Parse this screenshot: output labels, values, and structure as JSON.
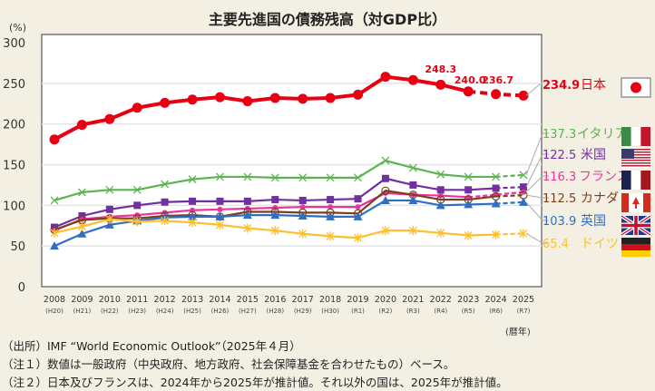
{
  "chart_data": {
    "type": "line",
    "title": "主要先進国の債務残高（対GDP比）",
    "ylabel": "(%)",
    "xlabel": "(暦年)",
    "ylim": [
      0,
      300
    ],
    "yticks": [
      0,
      50,
      100,
      150,
      200,
      250,
      300
    ],
    "grid": true,
    "legend": "right",
    "x": [
      "2008",
      "2009",
      "2010",
      "2011",
      "2012",
      "2013",
      "2014",
      "2015",
      "2016",
      "2017",
      "2018",
      "2019",
      "2020",
      "2021",
      "2022",
      "2023",
      "2024",
      "2025"
    ],
    "x_sub": [
      "(H20)",
      "(H21)",
      "(H22)",
      "(H23)",
      "(H24)",
      "(H25)",
      "(H26)",
      "(H27)",
      "(H28)",
      "(H29)",
      "(H30)",
      "(R1)",
      "(R2)",
      "(R3)",
      "(R4)",
      "(R5)",
      "(R6)",
      "(R7)"
    ],
    "series": [
      {
        "name": "日本",
        "color": "#e60012",
        "marker": "circle",
        "estimate_from": "2024",
        "label_value": "234.9",
        "flag": "japan",
        "values": [
          181,
          199,
          206,
          220,
          226,
          230,
          233,
          228,
          232,
          231,
          232,
          236,
          258,
          254,
          248.3,
          240.0,
          236.7,
          234.9
        ],
        "data_labels": {
          "2022": "248.3",
          "2023": "240.0",
          "2024": "236.7"
        }
      },
      {
        "name": "イタリア",
        "color": "#5cb450",
        "marker": "x",
        "estimate_from": "2025",
        "label_value": "137.3",
        "flag": "italy",
        "values": [
          106,
          116,
          119,
          119,
          126,
          132,
          135,
          135,
          134,
          134,
          134,
          134,
          155,
          146,
          138,
          135,
          135,
          137.3
        ]
      },
      {
        "name": "米国",
        "color": "#7030a0",
        "marker": "square",
        "estimate_from": "2025",
        "label_value": "122.5",
        "flag": "usa",
        "values": [
          73,
          87,
          95,
          100,
          104,
          105,
          105,
          105,
          107,
          106,
          107,
          108,
          133,
          125,
          119,
          119,
          121,
          122.5
        ]
      },
      {
        "name": "フランス",
        "color": "#e8379a",
        "marker": "diamond",
        "estimate_from": "2024",
        "label_value": "116.3",
        "flag": "france",
        "values": [
          69,
          83,
          86,
          88,
          91,
          94,
          95,
          96,
          97,
          98,
          98,
          98,
          115,
          113,
          112,
          110,
          113,
          116.3
        ]
      },
      {
        "name": "カナダ",
        "color": "#7b3f1e",
        "marker": "open-circle",
        "estimate_from": "2025",
        "label_value": "112.5",
        "flag": "canada",
        "values": [
          70,
          82,
          84,
          84,
          87,
          88,
          86,
          92,
          92,
          91,
          91,
          90,
          118,
          113,
          107,
          107,
          111,
          112.5
        ]
      },
      {
        "name": "英国",
        "color": "#2e6fc4",
        "marker": "triangle",
        "estimate_from": "2025",
        "label_value": "103.9",
        "flag": "uk",
        "values": [
          50,
          65,
          76,
          81,
          85,
          86,
          86,
          88,
          88,
          87,
          86,
          86,
          106,
          106,
          100,
          101,
          102,
          103.9
        ]
      },
      {
        "name": "ドイツ",
        "color": "#fdbf2d",
        "marker": "asterisk",
        "estimate_from": "2025",
        "label_value": "65.4",
        "flag": "germany",
        "values": [
          66,
          74,
          83,
          80,
          81,
          79,
          76,
          72,
          69,
          65,
          62,
          60,
          69,
          69,
          66,
          63,
          64,
          65.4
        ]
      }
    ]
  },
  "notes": {
    "source": "（出所）IMF “World Economic Outlook”（2025年４月）",
    "note1": "（注１）数値は一般政府（中央政府、地方政府、社会保障基金を合わせたもの）ベース。",
    "note2": "（注２）日本及びフランスは、2024年から2025年が推計値。それ以外の国は、2025年が推計値。"
  }
}
